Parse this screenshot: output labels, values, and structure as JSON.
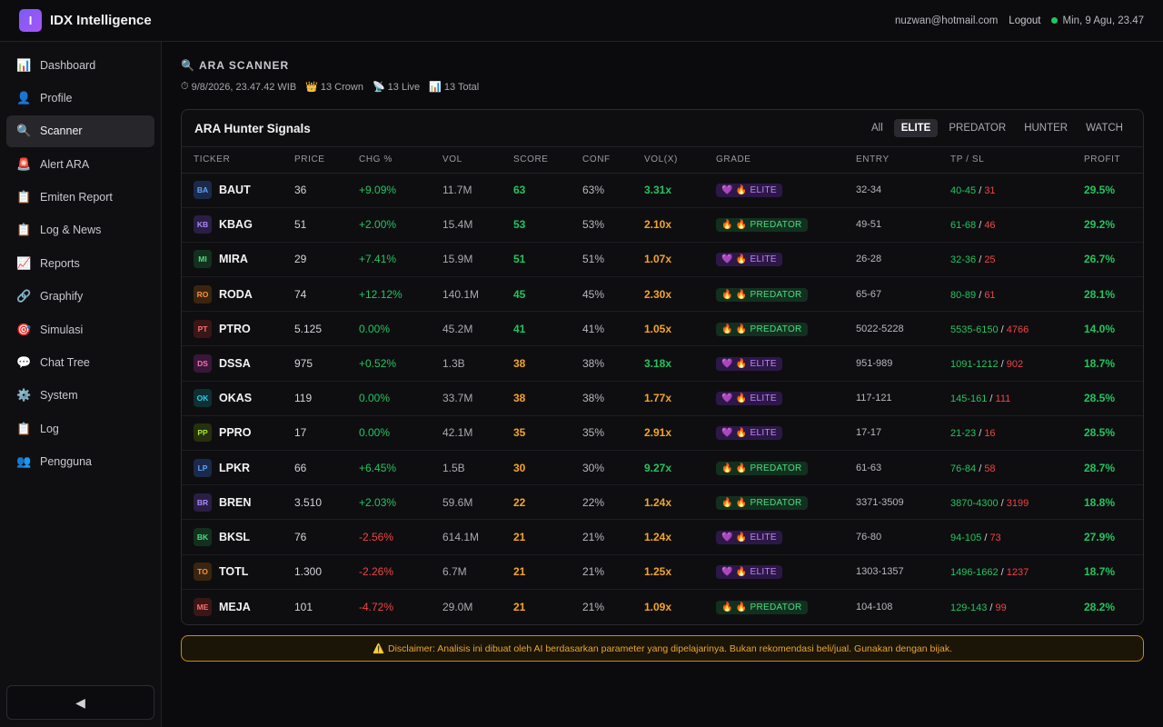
{
  "app": {
    "logo_letter": "I",
    "title": "IDX Intelligence"
  },
  "header": {
    "email": "nuzwan@hotmail.com",
    "logout": "Logout",
    "datetime": "Min, 9 Agu, 23.47",
    "status_color": "#22c55e"
  },
  "sidebar": {
    "items": [
      {
        "label": "Dashboard",
        "icon": "bar-chart-icon",
        "glyph": "📊",
        "active": false
      },
      {
        "label": "Profile",
        "icon": "user-icon",
        "glyph": "👤",
        "active": false
      },
      {
        "label": "Scanner",
        "icon": "search-icon",
        "glyph": "🔍",
        "active": true
      },
      {
        "label": "Alert ARA",
        "icon": "siren-icon",
        "glyph": "🚨",
        "active": false
      },
      {
        "label": "Emiten Report",
        "icon": "clipboard-icon",
        "glyph": "📋",
        "active": false
      },
      {
        "label": "Log & News",
        "icon": "clipboard-icon",
        "glyph": "📋",
        "active": false
      },
      {
        "label": "Reports",
        "icon": "trend-chart-icon",
        "glyph": "📈",
        "active": false
      },
      {
        "label": "Graphify",
        "icon": "link-icon",
        "glyph": "🔗",
        "active": false
      },
      {
        "label": "Simulasi",
        "icon": "target-icon",
        "glyph": "🎯",
        "active": false
      },
      {
        "label": "Chat Tree",
        "icon": "speech-bubble-icon",
        "glyph": "💬",
        "active": false
      },
      {
        "label": "System",
        "icon": "gear-icon",
        "glyph": "⚙️",
        "active": false
      },
      {
        "label": "Log",
        "icon": "clipboard-icon",
        "glyph": "📋",
        "active": false
      },
      {
        "label": "Pengguna",
        "icon": "users-icon",
        "glyph": "👥",
        "active": false
      }
    ],
    "collapse_glyph": "◀"
  },
  "page": {
    "title": "ARA SCANNER",
    "title_icon": "🔍",
    "meta": {
      "timestamp": "9/8/2026, 23.47.42 WIB",
      "crown": "13 Crown",
      "live": "13 Live",
      "total": "13 Total"
    }
  },
  "card": {
    "title": "ARA Hunter Signals",
    "filters": [
      "All",
      "ELITE",
      "PREDATOR",
      "HUNTER",
      "WATCH"
    ],
    "active_filter": "ELITE",
    "columns": [
      "TICKER",
      "PRICE",
      "CHG %",
      "VOL",
      "SCORE",
      "CONF",
      "VOL(X)",
      "GRADE",
      "ENTRY",
      "TP / SL",
      "PROFIT"
    ],
    "rows": [
      {
        "abbr": "BA",
        "badge_bg": "#1b2a4a",
        "badge_fg": "#60a5fa",
        "ticker": "BAUT",
        "price": "36",
        "chg": "+9.09%",
        "chg_dir": "pos",
        "vol": "11.7M",
        "score": "63",
        "score_c": "g",
        "conf": "63%",
        "volx": "3.31x",
        "volx_c": "g",
        "grade": "ELITE",
        "grade_icon": "💜",
        "entry": "32-34",
        "tp": "40-45",
        "sl": "31",
        "profit": "29.5%"
      },
      {
        "abbr": "KB",
        "badge_bg": "#2a1e44",
        "badge_fg": "#a78bfa",
        "ticker": "KBAG",
        "price": "51",
        "chg": "+2.00%",
        "chg_dir": "pos",
        "vol": "15.4M",
        "score": "53",
        "score_c": "g",
        "conf": "53%",
        "volx": "2.10x",
        "volx_c": "o",
        "grade": "PREDATOR",
        "grade_icon": "🔥",
        "entry": "49-51",
        "tp": "61-68",
        "sl": "46",
        "profit": "29.2%"
      },
      {
        "abbr": "MI",
        "badge_bg": "#13301f",
        "badge_fg": "#4ade80",
        "ticker": "MIRA",
        "price": "29",
        "chg": "+7.41%",
        "chg_dir": "pos",
        "vol": "15.9M",
        "score": "51",
        "score_c": "g",
        "conf": "51%",
        "volx": "1.07x",
        "volx_c": "o",
        "grade": "ELITE",
        "grade_icon": "💜",
        "entry": "26-28",
        "tp": "32-36",
        "sl": "25",
        "profit": "26.7%"
      },
      {
        "abbr": "RO",
        "badge_bg": "#3a2510",
        "badge_fg": "#fb923c",
        "ticker": "RODA",
        "price": "74",
        "chg": "+12.12%",
        "chg_dir": "pos",
        "vol": "140.1M",
        "score": "45",
        "score_c": "g",
        "conf": "45%",
        "volx": "2.30x",
        "volx_c": "o",
        "grade": "PREDATOR",
        "grade_icon": "🔥",
        "entry": "65-67",
        "tp": "80-89",
        "sl": "61",
        "profit": "28.1%"
      },
      {
        "abbr": "PT",
        "badge_bg": "#3a1616",
        "badge_fg": "#f87171",
        "ticker": "PTRO",
        "price": "5.125",
        "chg": "0.00%",
        "chg_dir": "neu",
        "vol": "45.2M",
        "score": "41",
        "score_c": "g",
        "conf": "41%",
        "volx": "1.05x",
        "volx_c": "o",
        "grade": "PREDATOR",
        "grade_icon": "🔥",
        "entry": "5022-5228",
        "tp": "5535-6150",
        "sl": "4766",
        "profit": "14.0%"
      },
      {
        "abbr": "DS",
        "badge_bg": "#3a1638",
        "badge_fg": "#f472b6",
        "ticker": "DSSA",
        "price": "975",
        "chg": "+0.52%",
        "chg_dir": "pos",
        "vol": "1.3B",
        "score": "38",
        "score_c": "o",
        "conf": "38%",
        "volx": "3.18x",
        "volx_c": "g",
        "grade": "ELITE",
        "grade_icon": "💜",
        "entry": "951-989",
        "tp": "1091-1212",
        "sl": "902",
        "profit": "18.7%"
      },
      {
        "abbr": "OK",
        "badge_bg": "#0f2f33",
        "badge_fg": "#22d3ee",
        "ticker": "OKAS",
        "price": "119",
        "chg": "0.00%",
        "chg_dir": "neu",
        "vol": "33.7M",
        "score": "38",
        "score_c": "o",
        "conf": "38%",
        "volx": "1.77x",
        "volx_c": "o",
        "grade": "ELITE",
        "grade_icon": "💜",
        "entry": "117-121",
        "tp": "145-161",
        "sl": "111",
        "profit": "28.5%"
      },
      {
        "abbr": "PP",
        "badge_bg": "#26300f",
        "badge_fg": "#a3e635",
        "ticker": "PPRO",
        "price": "17",
        "chg": "0.00%",
        "chg_dir": "neu",
        "vol": "42.1M",
        "score": "35",
        "score_c": "o",
        "conf": "35%",
        "volx": "2.91x",
        "volx_c": "o",
        "grade": "ELITE",
        "grade_icon": "💜",
        "entry": "17-17",
        "tp": "21-23",
        "sl": "16",
        "profit": "28.5%"
      },
      {
        "abbr": "LP",
        "badge_bg": "#1b2a4a",
        "badge_fg": "#60a5fa",
        "ticker": "LPKR",
        "price": "66",
        "chg": "+6.45%",
        "chg_dir": "pos",
        "vol": "1.5B",
        "score": "30",
        "score_c": "o",
        "conf": "30%",
        "volx": "9.27x",
        "volx_c": "g",
        "grade": "PREDATOR",
        "grade_icon": "🔥",
        "entry": "61-63",
        "tp": "76-84",
        "sl": "58",
        "profit": "28.7%"
      },
      {
        "abbr": "BR",
        "badge_bg": "#2a1e44",
        "badge_fg": "#a78bfa",
        "ticker": "BREN",
        "price": "3.510",
        "chg": "+2.03%",
        "chg_dir": "pos",
        "vol": "59.6M",
        "score": "22",
        "score_c": "o",
        "conf": "22%",
        "volx": "1.24x",
        "volx_c": "o",
        "grade": "PREDATOR",
        "grade_icon": "🔥",
        "entry": "3371-3509",
        "tp": "3870-4300",
        "sl": "3199",
        "profit": "18.8%"
      },
      {
        "abbr": "BK",
        "badge_bg": "#13301f",
        "badge_fg": "#4ade80",
        "ticker": "BKSL",
        "price": "76",
        "chg": "-2.56%",
        "chg_dir": "neg",
        "vol": "614.1M",
        "score": "21",
        "score_c": "o",
        "conf": "21%",
        "volx": "1.24x",
        "volx_c": "o",
        "grade": "ELITE",
        "grade_icon": "💜",
        "entry": "76-80",
        "tp": "94-105",
        "sl": "73",
        "profit": "27.9%"
      },
      {
        "abbr": "TO",
        "badge_bg": "#3a2510",
        "badge_fg": "#fb923c",
        "ticker": "TOTL",
        "price": "1.300",
        "chg": "-2.26%",
        "chg_dir": "neg",
        "vol": "6.7M",
        "score": "21",
        "score_c": "o",
        "conf": "21%",
        "volx": "1.25x",
        "volx_c": "o",
        "grade": "ELITE",
        "grade_icon": "💜",
        "entry": "1303-1357",
        "tp": "1496-1662",
        "sl": "1237",
        "profit": "18.7%"
      },
      {
        "abbr": "ME",
        "badge_bg": "#3a1616",
        "badge_fg": "#f87171",
        "ticker": "MEJA",
        "price": "101",
        "chg": "-4.72%",
        "chg_dir": "neg",
        "vol": "29.0M",
        "score": "21",
        "score_c": "o",
        "conf": "21%",
        "volx": "1.09x",
        "volx_c": "o",
        "grade": "PREDATOR",
        "grade_icon": "🔥",
        "entry": "104-108",
        "tp": "129-143",
        "sl": "99",
        "profit": "28.2%"
      }
    ]
  },
  "disclaimer": {
    "icon": "⚠️",
    "text": "Disclaimer: Analisis ini dibuat oleh AI berdasarkan parameter yang dipelajarinya. Bukan rekomendasi beli/jual. Gunakan dengan bijak."
  }
}
